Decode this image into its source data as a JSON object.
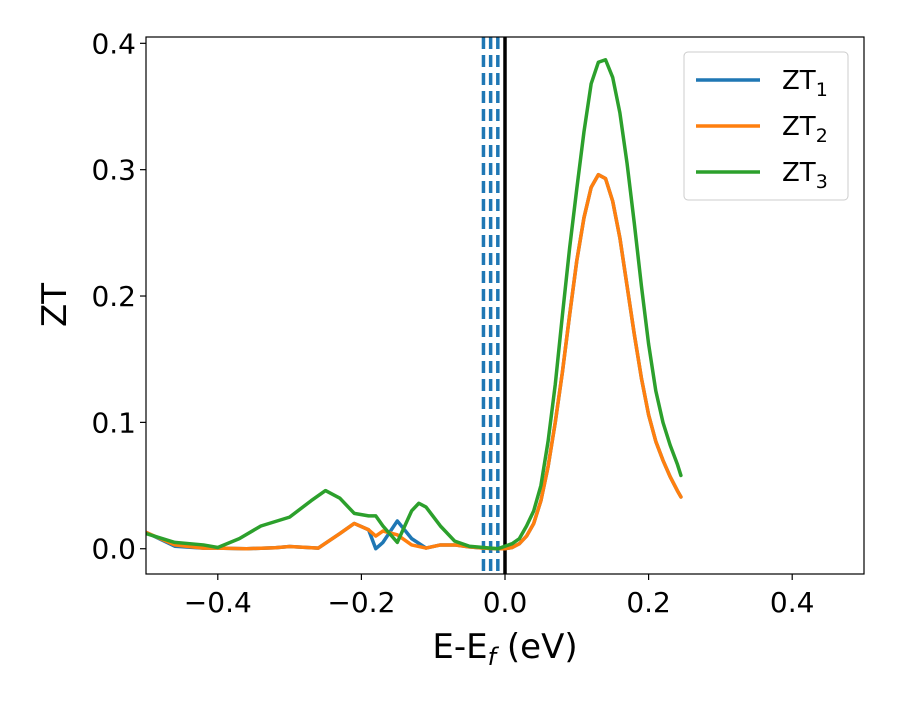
{
  "chart_data": {
    "type": "line",
    "xlabel_main": "E-E",
    "xlabel_sub": "f",
    "xlabel_rest": " (eV)",
    "ylabel": "ZT",
    "xlim": [
      -0.5,
      0.5
    ],
    "ylim": [
      -0.02,
      0.405
    ],
    "xticks": [
      -0.4,
      -0.2,
      0.0,
      0.2,
      0.4
    ],
    "xtick_labels": [
      "−0.4",
      "−0.2",
      "0.0",
      "0.2",
      "0.4"
    ],
    "yticks": [
      0.0,
      0.1,
      0.2,
      0.3,
      0.4
    ],
    "ytick_labels": [
      "0.0",
      "0.1",
      "0.2",
      "0.3",
      "0.4"
    ],
    "grid": false,
    "legend_position": "top-right",
    "series": [
      {
        "name": "ZT",
        "sub": "1",
        "color": "#1f77b4",
        "x": [
          -0.5,
          -0.46,
          -0.42,
          -0.4,
          -0.36,
          -0.32,
          -0.3,
          -0.26,
          -0.23,
          -0.21,
          -0.19,
          -0.18,
          -0.17,
          -0.15,
          -0.13,
          -0.11,
          -0.09,
          -0.07,
          -0.05,
          -0.03,
          -0.01,
          0.0,
          0.01,
          0.02,
          0.03,
          0.04,
          0.05,
          0.06,
          0.07,
          0.08,
          0.09,
          0.1,
          0.11,
          0.12,
          0.13,
          0.14,
          0.15,
          0.16,
          0.17,
          0.18,
          0.19,
          0.2,
          0.21,
          0.22,
          0.23,
          0.24,
          0.245
        ],
        "y": [
          0.013,
          0.002,
          0.0005,
          0.0005,
          0.0,
          0.0008,
          0.0018,
          0.0005,
          0.012,
          0.02,
          0.015,
          0.0,
          0.005,
          0.022,
          0.008,
          0.0005,
          0.003,
          0.003,
          0.0015,
          0.0005,
          0.0,
          0.0,
          0.001,
          0.004,
          0.01,
          0.02,
          0.038,
          0.065,
          0.1,
          0.14,
          0.185,
          0.228,
          0.262,
          0.286,
          0.296,
          0.293,
          0.275,
          0.246,
          0.208,
          0.17,
          0.135,
          0.106,
          0.085,
          0.07,
          0.057,
          0.046,
          0.041
        ]
      },
      {
        "name": "ZT",
        "sub": "2",
        "color": "#ff7f0e",
        "x": [
          -0.5,
          -0.46,
          -0.42,
          -0.4,
          -0.36,
          -0.32,
          -0.3,
          -0.26,
          -0.23,
          -0.21,
          -0.19,
          -0.18,
          -0.17,
          -0.15,
          -0.13,
          -0.11,
          -0.09,
          -0.07,
          -0.05,
          -0.03,
          -0.01,
          0.0,
          0.01,
          0.02,
          0.03,
          0.04,
          0.05,
          0.06,
          0.07,
          0.08,
          0.09,
          0.1,
          0.11,
          0.12,
          0.13,
          0.14,
          0.15,
          0.16,
          0.17,
          0.18,
          0.19,
          0.2,
          0.21,
          0.22,
          0.23,
          0.24,
          0.245
        ],
        "y": [
          0.013,
          0.003,
          0.0005,
          0.0005,
          0.0,
          0.0008,
          0.0018,
          0.0005,
          0.012,
          0.02,
          0.015,
          0.01,
          0.014,
          0.011,
          0.003,
          0.0005,
          0.003,
          0.003,
          0.0015,
          0.0005,
          0.0,
          0.0,
          0.001,
          0.004,
          0.01,
          0.02,
          0.038,
          0.065,
          0.1,
          0.14,
          0.185,
          0.228,
          0.262,
          0.286,
          0.296,
          0.293,
          0.275,
          0.246,
          0.208,
          0.17,
          0.135,
          0.106,
          0.085,
          0.07,
          0.057,
          0.046,
          0.041
        ]
      },
      {
        "name": "ZT",
        "sub": "3",
        "color": "#2ca02c",
        "x": [
          -0.5,
          -0.46,
          -0.42,
          -0.4,
          -0.37,
          -0.34,
          -0.3,
          -0.27,
          -0.25,
          -0.23,
          -0.21,
          -0.19,
          -0.18,
          -0.17,
          -0.15,
          -0.13,
          -0.12,
          -0.11,
          -0.09,
          -0.07,
          -0.05,
          -0.03,
          -0.01,
          0.0,
          0.01,
          0.02,
          0.03,
          0.04,
          0.05,
          0.06,
          0.07,
          0.08,
          0.09,
          0.1,
          0.11,
          0.12,
          0.13,
          0.14,
          0.15,
          0.16,
          0.17,
          0.18,
          0.19,
          0.2,
          0.21,
          0.22,
          0.23,
          0.24,
          0.245
        ],
        "y": [
          0.012,
          0.005,
          0.003,
          0.001,
          0.008,
          0.018,
          0.025,
          0.038,
          0.046,
          0.04,
          0.028,
          0.026,
          0.026,
          0.018,
          0.005,
          0.03,
          0.036,
          0.033,
          0.018,
          0.006,
          0.002,
          0.001,
          0.0,
          0.002,
          0.004,
          0.008,
          0.018,
          0.03,
          0.05,
          0.085,
          0.13,
          0.185,
          0.238,
          0.285,
          0.33,
          0.368,
          0.385,
          0.387,
          0.373,
          0.345,
          0.305,
          0.258,
          0.208,
          0.162,
          0.125,
          0.1,
          0.082,
          0.067,
          0.058
        ]
      }
    ],
    "vlines": [
      {
        "x": -0.03,
        "color": "#1f77b4",
        "style": "dashed"
      },
      {
        "x": -0.02,
        "color": "#1f77b4",
        "style": "dashed"
      },
      {
        "x": -0.01,
        "color": "#1f77b4",
        "style": "dashed"
      },
      {
        "x": 0.0,
        "color": "#000000",
        "style": "solid"
      }
    ]
  }
}
